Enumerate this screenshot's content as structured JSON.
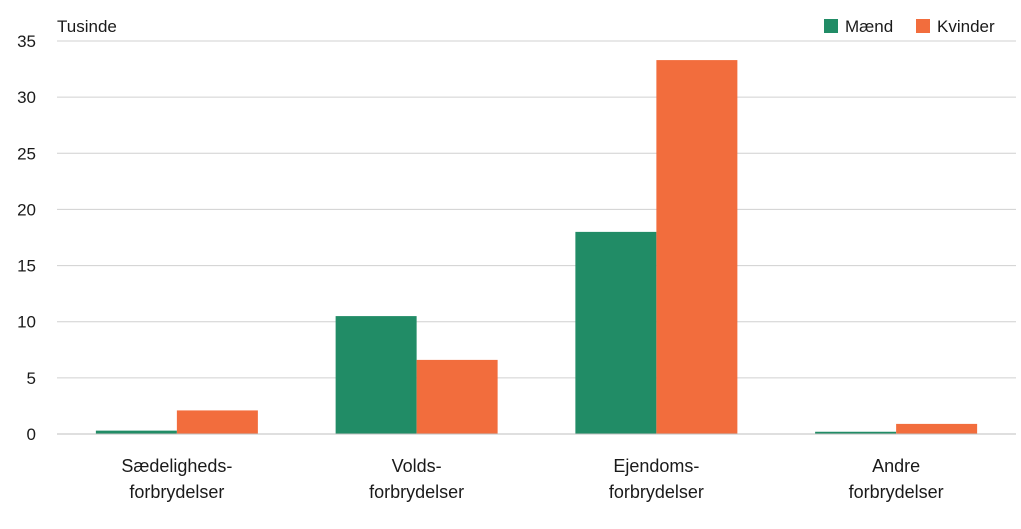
{
  "chart_data": {
    "type": "bar",
    "unit_label": "Tusinde",
    "categories": [
      [
        "Sædeligheds-",
        "forbrydelser"
      ],
      [
        "Volds-",
        "forbrydelser"
      ],
      [
        "Ejendoms-",
        "forbrydelser"
      ],
      [
        "Andre",
        "forbrydelser"
      ]
    ],
    "series": [
      {
        "name": "Mænd",
        "color": "#218c66",
        "values": [
          0.3,
          10.5,
          18.0,
          0.2
        ]
      },
      {
        "name": "Kvinder",
        "color": "#f26d3d",
        "values": [
          2.1,
          6.6,
          33.3,
          0.9
        ]
      }
    ],
    "ylim": [
      0,
      35
    ],
    "yticks": [
      0,
      5,
      10,
      15,
      20,
      25,
      30,
      35
    ],
    "grid": true,
    "legend_position": "top-right"
  }
}
